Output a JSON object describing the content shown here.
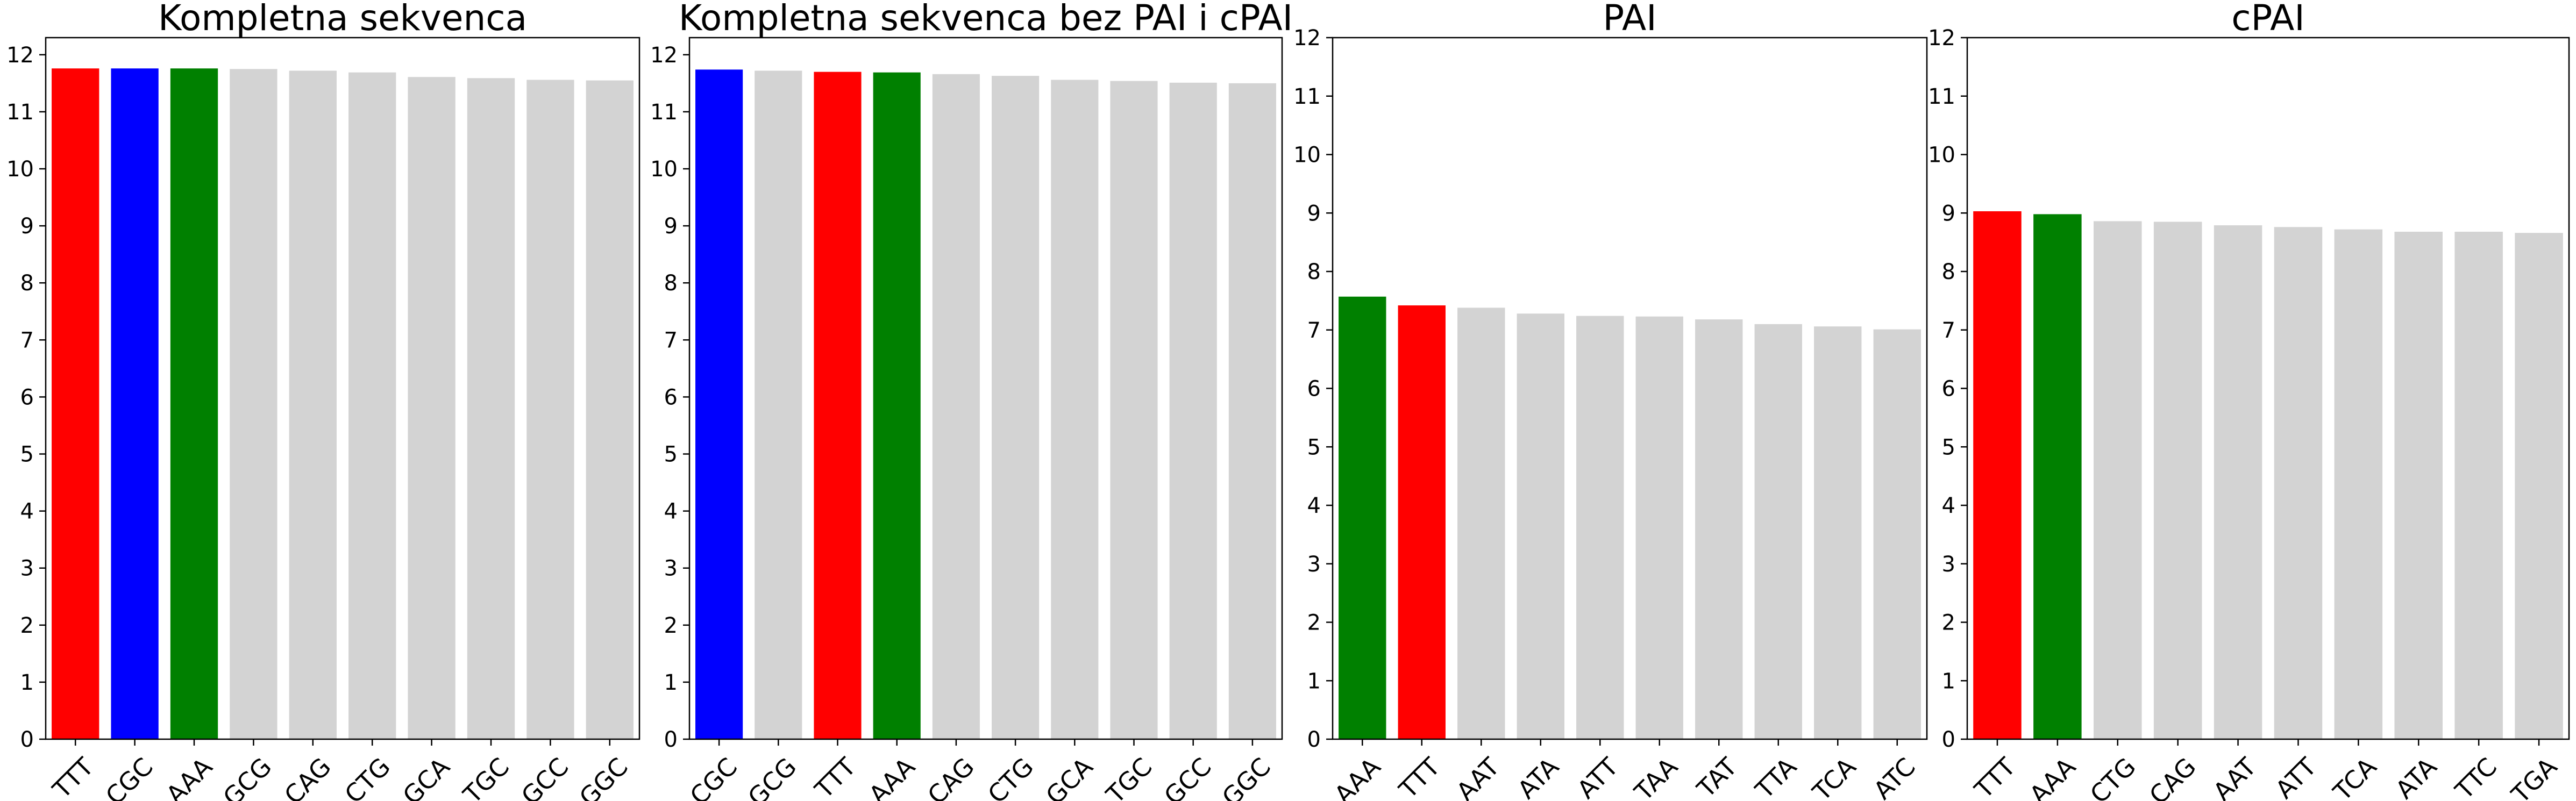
{
  "chart_data": [
    {
      "type": "bar",
      "title": "Kompletna sekvenca",
      "categories": [
        "TTT",
        "CGC",
        "AAA",
        "GCG",
        "CAG",
        "CTG",
        "GCA",
        "TGC",
        "GCC",
        "GGC"
      ],
      "values": [
        11.76,
        11.76,
        11.76,
        11.75,
        11.72,
        11.69,
        11.61,
        11.59,
        11.56,
        11.55
      ],
      "colors": [
        "#ff0000",
        "#0000ff",
        "#008000",
        "#d3d3d3",
        "#d3d3d3",
        "#d3d3d3",
        "#d3d3d3",
        "#d3d3d3",
        "#d3d3d3",
        "#d3d3d3"
      ],
      "ylim": [
        0,
        12.3
      ],
      "yticks": [
        0,
        1,
        2,
        3,
        4,
        5,
        6,
        7,
        8,
        9,
        10,
        11,
        12
      ]
    },
    {
      "type": "bar",
      "title": "Kompletna sekvenca bez PAI i cPAI",
      "categories": [
        "CGC",
        "GCG",
        "TTT",
        "AAA",
        "CAG",
        "CTG",
        "GCA",
        "TGC",
        "GCC",
        "GGC"
      ],
      "values": [
        11.74,
        11.72,
        11.7,
        11.69,
        11.66,
        11.63,
        11.56,
        11.54,
        11.51,
        11.5
      ],
      "colors": [
        "#0000ff",
        "#d3d3d3",
        "#ff0000",
        "#008000",
        "#d3d3d3",
        "#d3d3d3",
        "#d3d3d3",
        "#d3d3d3",
        "#d3d3d3",
        "#d3d3d3"
      ],
      "ylim": [
        0,
        12.3
      ],
      "yticks": [
        0,
        1,
        2,
        3,
        4,
        5,
        6,
        7,
        8,
        9,
        10,
        11,
        12
      ]
    },
    {
      "type": "bar",
      "title": "PAI",
      "categories": [
        "AAA",
        "TTT",
        "AAT",
        "ATA",
        "ATT",
        "TAA",
        "TAT",
        "TTA",
        "TCA",
        "ATC"
      ],
      "values": [
        7.57,
        7.42,
        7.38,
        7.28,
        7.24,
        7.23,
        7.18,
        7.1,
        7.06,
        7.01
      ],
      "colors": [
        "#008000",
        "#ff0000",
        "#d3d3d3",
        "#d3d3d3",
        "#d3d3d3",
        "#d3d3d3",
        "#d3d3d3",
        "#d3d3d3",
        "#d3d3d3",
        "#d3d3d3"
      ],
      "ylim": [
        0,
        12
      ],
      "yticks": [
        0,
        1,
        2,
        3,
        4,
        5,
        6,
        7,
        8,
        9,
        10,
        11,
        12
      ]
    },
    {
      "type": "bar",
      "title": "cPAI",
      "categories": [
        "TTT",
        "AAA",
        "CTG",
        "CAG",
        "AAT",
        "ATT",
        "TCA",
        "ATA",
        "TTC",
        "TGA"
      ],
      "values": [
        9.03,
        8.98,
        8.86,
        8.85,
        8.79,
        8.76,
        8.72,
        8.68,
        8.68,
        8.66
      ],
      "colors": [
        "#ff0000",
        "#008000",
        "#d3d3d3",
        "#d3d3d3",
        "#d3d3d3",
        "#d3d3d3",
        "#d3d3d3",
        "#d3d3d3",
        "#d3d3d3",
        "#d3d3d3"
      ],
      "ylim": [
        0,
        12
      ],
      "yticks": [
        0,
        1,
        2,
        3,
        4,
        5,
        6,
        7,
        8,
        9,
        10,
        11,
        12
      ]
    }
  ]
}
